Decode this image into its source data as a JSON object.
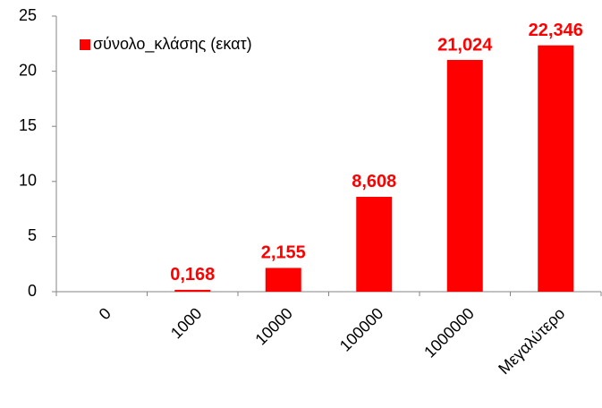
{
  "chart_data": {
    "type": "bar",
    "categories": [
      "0",
      "1000",
      "10000",
      "100000",
      "1000000",
      "Μεγαλύτερο"
    ],
    "series": [
      {
        "name": "σύνολο_κλάσης (εκατ)",
        "color": "#ff0000",
        "values": [
          0,
          0.168,
          2.155,
          8.608,
          21.024,
          22.346
        ],
        "value_labels": [
          null,
          "0,168",
          "2,155",
          "8,608",
          "21,024",
          "22,346"
        ]
      }
    ],
    "ylim": [
      0,
      25
    ],
    "yticks": [
      0,
      5,
      10,
      15,
      20,
      25
    ],
    "grid": false,
    "legend": "top-left"
  }
}
